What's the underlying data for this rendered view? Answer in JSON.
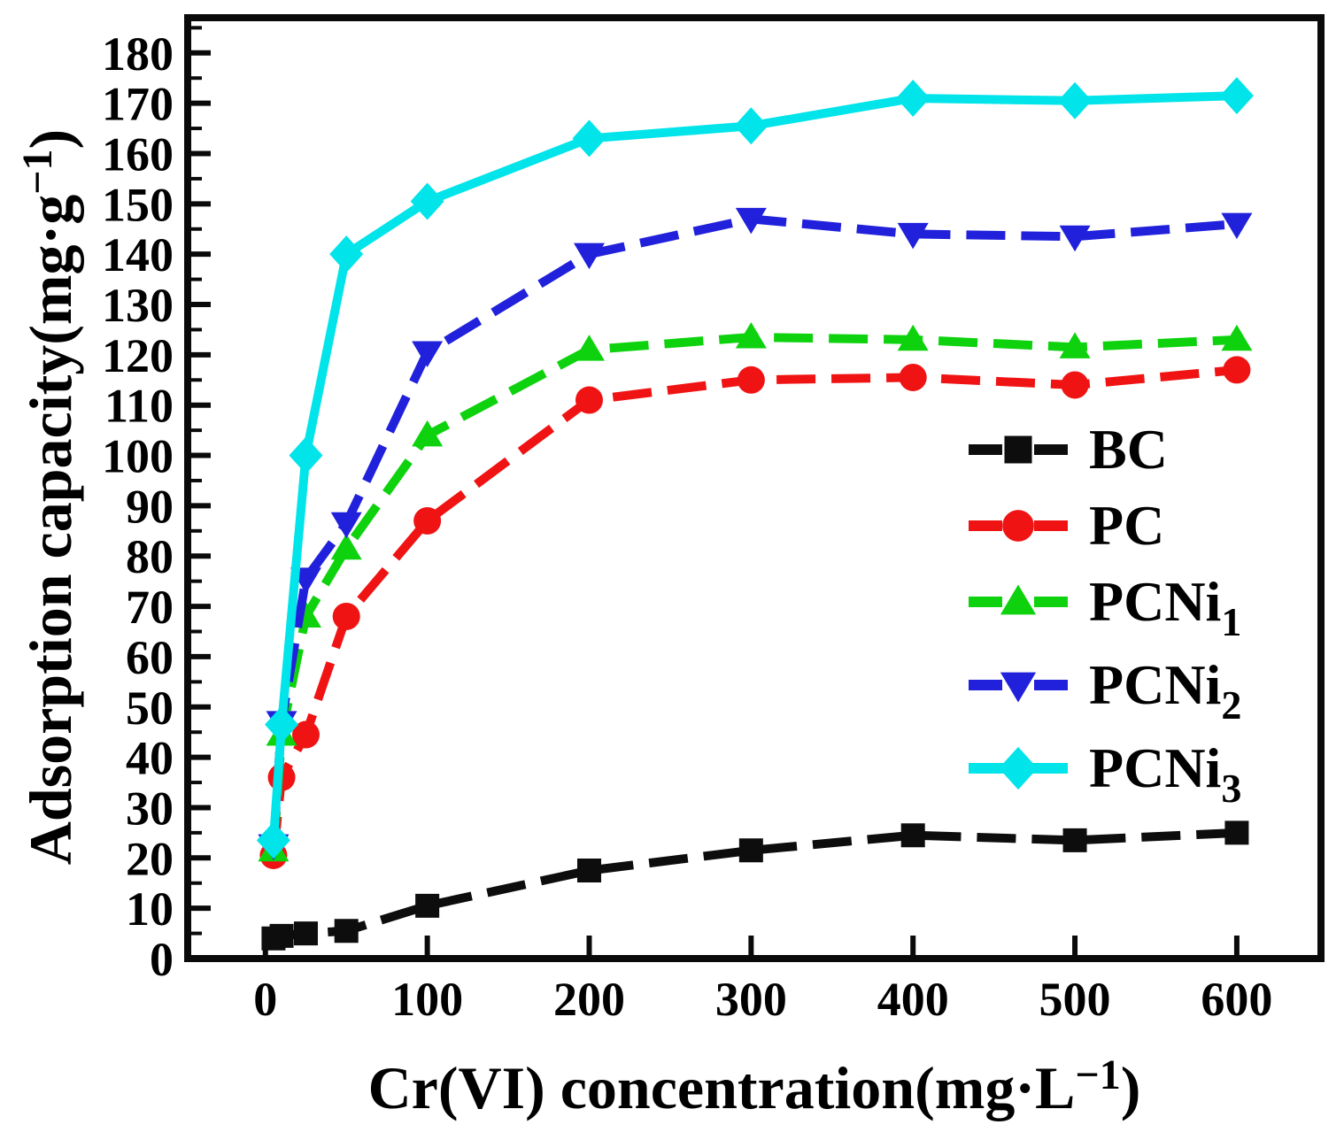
{
  "figure": {
    "background": "#ffffff",
    "frame_color": "#0a0a0a",
    "tick_color": "#0a0a0a"
  },
  "chart_data": {
    "type": "line",
    "title": "",
    "xlabel": "Cr(VI) concentration(mg·L−1)",
    "ylabel": "Adsorption capacity(mg·g−1)",
    "xlabel_parts": [
      {
        "t": "Cr(VI) concentration(mg·L"
      },
      {
        "t": "−1",
        "sup": true
      },
      {
        "t": ")"
      }
    ],
    "ylabel_parts": [
      {
        "t": "Adsorption capacity(mg·g"
      },
      {
        "t": "−1",
        "sup": true
      },
      {
        "t": ")"
      }
    ],
    "x": [
      5,
      10,
      25,
      50,
      100,
      200,
      300,
      400,
      500,
      600
    ],
    "series": [
      {
        "label": "BC",
        "label_parts": [
          {
            "t": "BC"
          }
        ],
        "color": "#0d0d0d",
        "marker": "square",
        "line": "dashed",
        "values": [
          4,
          4.5,
          5,
          5.5,
          10.5,
          17.5,
          21.5,
          24.5,
          23.5,
          25
        ]
      },
      {
        "label": "PC",
        "label_parts": [
          {
            "t": "PC"
          }
        ],
        "color": "#f01313",
        "marker": "circle",
        "line": "dashed",
        "values": [
          20.5,
          36,
          44.5,
          68,
          87,
          111,
          115,
          115.5,
          114,
          117
        ]
      },
      {
        "label": "PCNi₁",
        "label_parts": [
          {
            "t": "PCNi"
          },
          {
            "t": "1",
            "sub": true
          }
        ],
        "color": "#0dd20d",
        "marker": "triangle-up",
        "line": "dashed",
        "values": [
          21.5,
          44.5,
          68,
          81.5,
          104,
          121,
          123.5,
          123,
          121.5,
          123
        ]
      },
      {
        "label": "PCNi₂",
        "label_parts": [
          {
            "t": "PCNi"
          },
          {
            "t": "2",
            "sub": true
          }
        ],
        "color": "#2121dc",
        "marker": "triangle-down",
        "line": "dashed",
        "values": [
          22.5,
          47,
          75.5,
          86.5,
          120.5,
          140,
          147,
          144,
          143.5,
          146
        ]
      },
      {
        "label": "PCNi₃",
        "label_parts": [
          {
            "t": "PCNi"
          },
          {
            "t": "3",
            "sub": true
          }
        ],
        "color": "#00e4ea",
        "marker": "diamond",
        "line": "solid",
        "values": [
          23.5,
          46.5,
          100,
          140,
          150.5,
          163,
          165.5,
          171,
          170.5,
          171.5
        ]
      }
    ],
    "xlim": [
      -48,
      652
    ],
    "ylim": [
      0,
      187
    ],
    "xticks": [
      0,
      100,
      200,
      300,
      400,
      500,
      600
    ],
    "yticks": [
      0,
      10,
      20,
      30,
      40,
      50,
      60,
      70,
      80,
      90,
      100,
      110,
      120,
      130,
      140,
      150,
      160,
      170,
      180
    ],
    "y_minor_step": 5,
    "grid": false,
    "legend_position": "inside-right-middle"
  }
}
